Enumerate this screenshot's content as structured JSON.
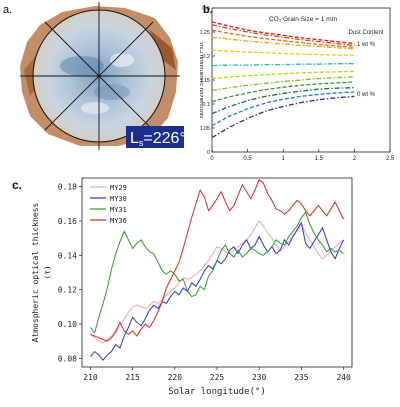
{
  "panels": {
    "a": {
      "label": "a.",
      "ls_text": "L",
      "ls_sub": "s",
      "ls_value": "=226°",
      "colors": {
        "frost": "#b6c9db",
        "dust": "#b97a4a",
        "box": "#1c2f8f"
      }
    },
    "b": {
      "label": "b."
    },
    "c": {
      "label": "c."
    }
  },
  "chart_data": [
    {
      "type": "line",
      "title": "CO₂ Grain Size = 1 mm",
      "xlabel": "τ",
      "xlabel_sub": "V",
      "ylabel": "Normalized Sublimation Flux",
      "xlim": [
        0,
        2.5
      ],
      "ylim": [
        0,
        0.3
      ],
      "xticks": [
        "0",
        "0.5",
        "1",
        "1.5",
        "2",
        "2.5"
      ],
      "yticks": [
        "0",
        "0.05",
        "0.1",
        "0.15",
        "0.2",
        "0.25",
        "0.3"
      ],
      "annotations": [
        "Dust Content",
        "1 wt %",
        "0 wt %"
      ],
      "x": [
        0,
        0.25,
        0.5,
        0.75,
        1,
        1.25,
        1.5,
        1.75,
        2
      ],
      "series": [
        {
          "color": "#d01c1c",
          "values": [
            0.271,
            0.262,
            0.254,
            0.248,
            0.243,
            0.238,
            0.234,
            0.23,
            0.226
          ]
        },
        {
          "color": "#e0401a",
          "values": [
            0.265,
            0.257,
            0.25,
            0.244,
            0.239,
            0.234,
            0.23,
            0.226,
            0.222
          ]
        },
        {
          "color": "#e86a10",
          "values": [
            0.254,
            0.247,
            0.241,
            0.236,
            0.232,
            0.228,
            0.224,
            0.221,
            0.218
          ]
        },
        {
          "color": "#f2a000",
          "values": [
            0.239,
            0.235,
            0.231,
            0.228,
            0.225,
            0.222,
            0.22,
            0.217,
            0.215
          ]
        },
        {
          "color": "#e7d200",
          "values": [
            0.212,
            0.21,
            0.208,
            0.207,
            0.205,
            0.204,
            0.203,
            0.202,
            0.201
          ]
        },
        {
          "color": "#16c5b8",
          "values": [
            0.18,
            0.181,
            0.181,
            0.182,
            0.182,
            0.183,
            0.183,
            0.184,
            0.184
          ]
        },
        {
          "color": "#c2d800",
          "values": [
            0.153,
            0.156,
            0.159,
            0.161,
            0.163,
            0.165,
            0.166,
            0.167,
            0.168
          ]
        },
        {
          "color": "#7ec21a",
          "values": [
            0.128,
            0.134,
            0.139,
            0.143,
            0.147,
            0.15,
            0.153,
            0.155,
            0.157
          ]
        },
        {
          "color": "#2e9a2e",
          "values": [
            0.105,
            0.115,
            0.123,
            0.13,
            0.135,
            0.139,
            0.142,
            0.144,
            0.146
          ]
        },
        {
          "color": "#1b6b3a",
          "values": [
            0.08,
            0.095,
            0.107,
            0.116,
            0.122,
            0.127,
            0.131,
            0.133,
            0.134
          ]
        },
        {
          "color": "#1f7fbf",
          "values": [
            0.055,
            0.075,
            0.09,
            0.102,
            0.11,
            0.116,
            0.12,
            0.123,
            0.125
          ]
        },
        {
          "color": "#28348f",
          "values": [
            0.03,
            0.052,
            0.07,
            0.085,
            0.095,
            0.103,
            0.109,
            0.113,
            0.116
          ]
        }
      ]
    },
    {
      "type": "line",
      "xlabel": "Solar longitude(°)",
      "ylabel": "Atmospheric optical thickness",
      "ylabel2": "(τ)",
      "xlim": [
        209,
        241
      ],
      "ylim": [
        0.075,
        0.185
      ],
      "xticks": [
        "210",
        "215",
        "220",
        "225",
        "230",
        "235",
        "240"
      ],
      "yticks": [
        "0.08",
        "0.10",
        "0.12",
        "0.14",
        "0.16",
        "0.18"
      ],
      "legend_position": "top-left",
      "x": [
        210,
        210.5,
        211,
        211.5,
        212,
        212.5,
        213,
        213.5,
        214,
        214.5,
        215,
        215.5,
        216,
        216.5,
        217,
        217.5,
        218,
        218.5,
        219,
        219.5,
        220,
        220.5,
        221,
        221.5,
        222,
        222.5,
        223,
        223.5,
        224,
        224.5,
        225,
        225.5,
        226,
        226.5,
        227,
        227.5,
        228,
        228.5,
        229,
        229.5,
        230,
        230.5,
        231,
        231.5,
        232,
        232.5,
        233,
        233.5,
        234,
        234.5,
        235,
        235.5,
        236,
        236.5,
        237,
        237.5,
        238,
        238.5,
        239,
        239.5,
        240
      ],
      "series": [
        {
          "name": "MY29",
          "color": "#f2a3b6",
          "values": [
            0.094,
            0.092,
            0.09,
            0.089,
            0.091,
            0.093,
            0.095,
            0.099,
            0.103,
            0.107,
            0.11,
            0.111,
            0.11,
            0.109,
            0.111,
            0.113,
            0.112,
            0.114,
            0.117,
            0.119,
            0.121,
            0.124,
            0.127,
            0.126,
            0.127,
            0.129,
            0.131,
            0.134,
            0.137,
            0.141,
            0.145,
            0.144,
            0.142,
            0.141,
            0.143,
            0.145,
            0.147,
            0.149,
            0.152,
            0.156,
            0.16,
            0.157,
            0.153,
            0.15,
            0.146,
            0.143,
            0.145,
            0.148,
            0.151,
            0.154,
            0.158,
            0.153,
            0.149,
            0.145,
            0.141,
            0.138,
            0.14,
            0.143,
            0.145,
            0.147,
            0.149
          ]
        },
        {
          "name": "MY30",
          "color": "#2a35d6",
          "values": [
            0.081,
            0.084,
            0.082,
            0.079,
            0.082,
            0.084,
            0.088,
            0.086,
            0.093,
            0.098,
            0.104,
            0.101,
            0.099,
            0.103,
            0.108,
            0.111,
            0.109,
            0.113,
            0.112,
            0.116,
            0.119,
            0.117,
            0.121,
            0.119,
            0.124,
            0.122,
            0.126,
            0.131,
            0.134,
            0.132,
            0.137,
            0.135,
            0.138,
            0.143,
            0.145,
            0.141,
            0.146,
            0.149,
            0.144,
            0.146,
            0.151,
            0.146,
            0.142,
            0.145,
            0.141,
            0.143,
            0.149,
            0.146,
            0.151,
            0.155,
            0.159,
            0.147,
            0.144,
            0.148,
            0.152,
            0.156,
            0.149,
            0.142,
            0.138,
            0.144,
            0.149
          ]
        },
        {
          "name": "MY31",
          "color": "#27a128",
          "values": [
            0.098,
            0.095,
            0.104,
            0.112,
            0.121,
            0.132,
            0.141,
            0.148,
            0.154,
            0.149,
            0.144,
            0.147,
            0.149,
            0.145,
            0.142,
            0.141,
            0.136,
            0.131,
            0.129,
            0.131,
            0.129,
            0.125,
            0.126,
            0.119,
            0.116,
            0.117,
            0.122,
            0.12,
            0.128,
            0.131,
            0.137,
            0.143,
            0.146,
            0.141,
            0.139,
            0.143,
            0.139,
            0.141,
            0.144,
            0.143,
            0.141,
            0.14,
            0.142,
            0.145,
            0.149,
            0.147,
            0.146,
            0.151,
            0.154,
            0.157,
            0.162,
            0.165,
            0.158,
            0.153,
            0.149,
            0.146,
            0.142,
            0.144,
            0.142,
            0.143,
            0.141
          ]
        },
        {
          "name": "MY36",
          "color": "#e02525",
          "values": [
            0.094,
            0.093,
            0.092,
            0.091,
            0.09,
            0.092,
            0.096,
            0.101,
            0.096,
            0.094,
            0.096,
            0.093,
            0.097,
            0.1,
            0.098,
            0.102,
            0.107,
            0.113,
            0.121,
            0.126,
            0.131,
            0.136,
            0.144,
            0.153,
            0.162,
            0.17,
            0.178,
            0.174,
            0.166,
            0.169,
            0.173,
            0.177,
            0.171,
            0.166,
            0.169,
            0.175,
            0.181,
            0.177,
            0.173,
            0.178,
            0.184,
            0.182,
            0.176,
            0.172,
            0.167,
            0.166,
            0.164,
            0.166,
            0.169,
            0.172,
            0.17,
            0.166,
            0.163,
            0.166,
            0.169,
            0.166,
            0.163,
            0.167,
            0.171,
            0.166,
            0.161
          ]
        }
      ]
    }
  ]
}
